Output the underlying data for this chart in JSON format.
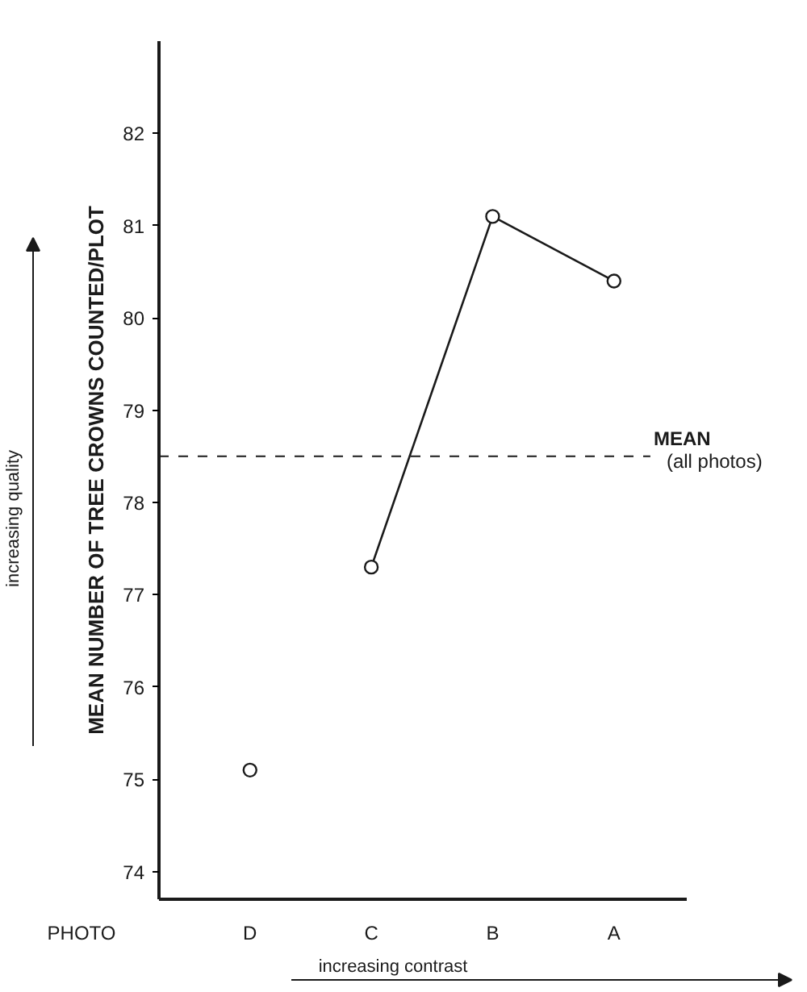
{
  "chart_data": {
    "type": "line",
    "xlabel": "PHOTO",
    "ylabel": "MEAN NUMBER OF TREE CROWNS COUNTED/PLOT",
    "categories": [
      "D",
      "C",
      "B",
      "A"
    ],
    "series": [
      {
        "type": "scatter",
        "color": "#1a1a1a",
        "values": [
          75.1,
          null,
          null,
          null
        ]
      },
      {
        "color": "#1a1a1a",
        "values": [
          null,
          77.3,
          81.1,
          80.4
        ]
      }
    ],
    "marker": "circle",
    "line_style": "solid",
    "ylim": [
      73.7,
      83
    ],
    "yticks": [
      74,
      75,
      76,
      77,
      78,
      79,
      80,
      81,
      82
    ],
    "ref_lines": [
      {
        "axis": "y",
        "value": 78.5,
        "label": "MEAN\n(all photos)",
        "line_style": "dashed",
        "color": "#1a1a1a"
      }
    ],
    "annotations": [
      "increasing quality",
      "increasing contrast"
    ]
  }
}
